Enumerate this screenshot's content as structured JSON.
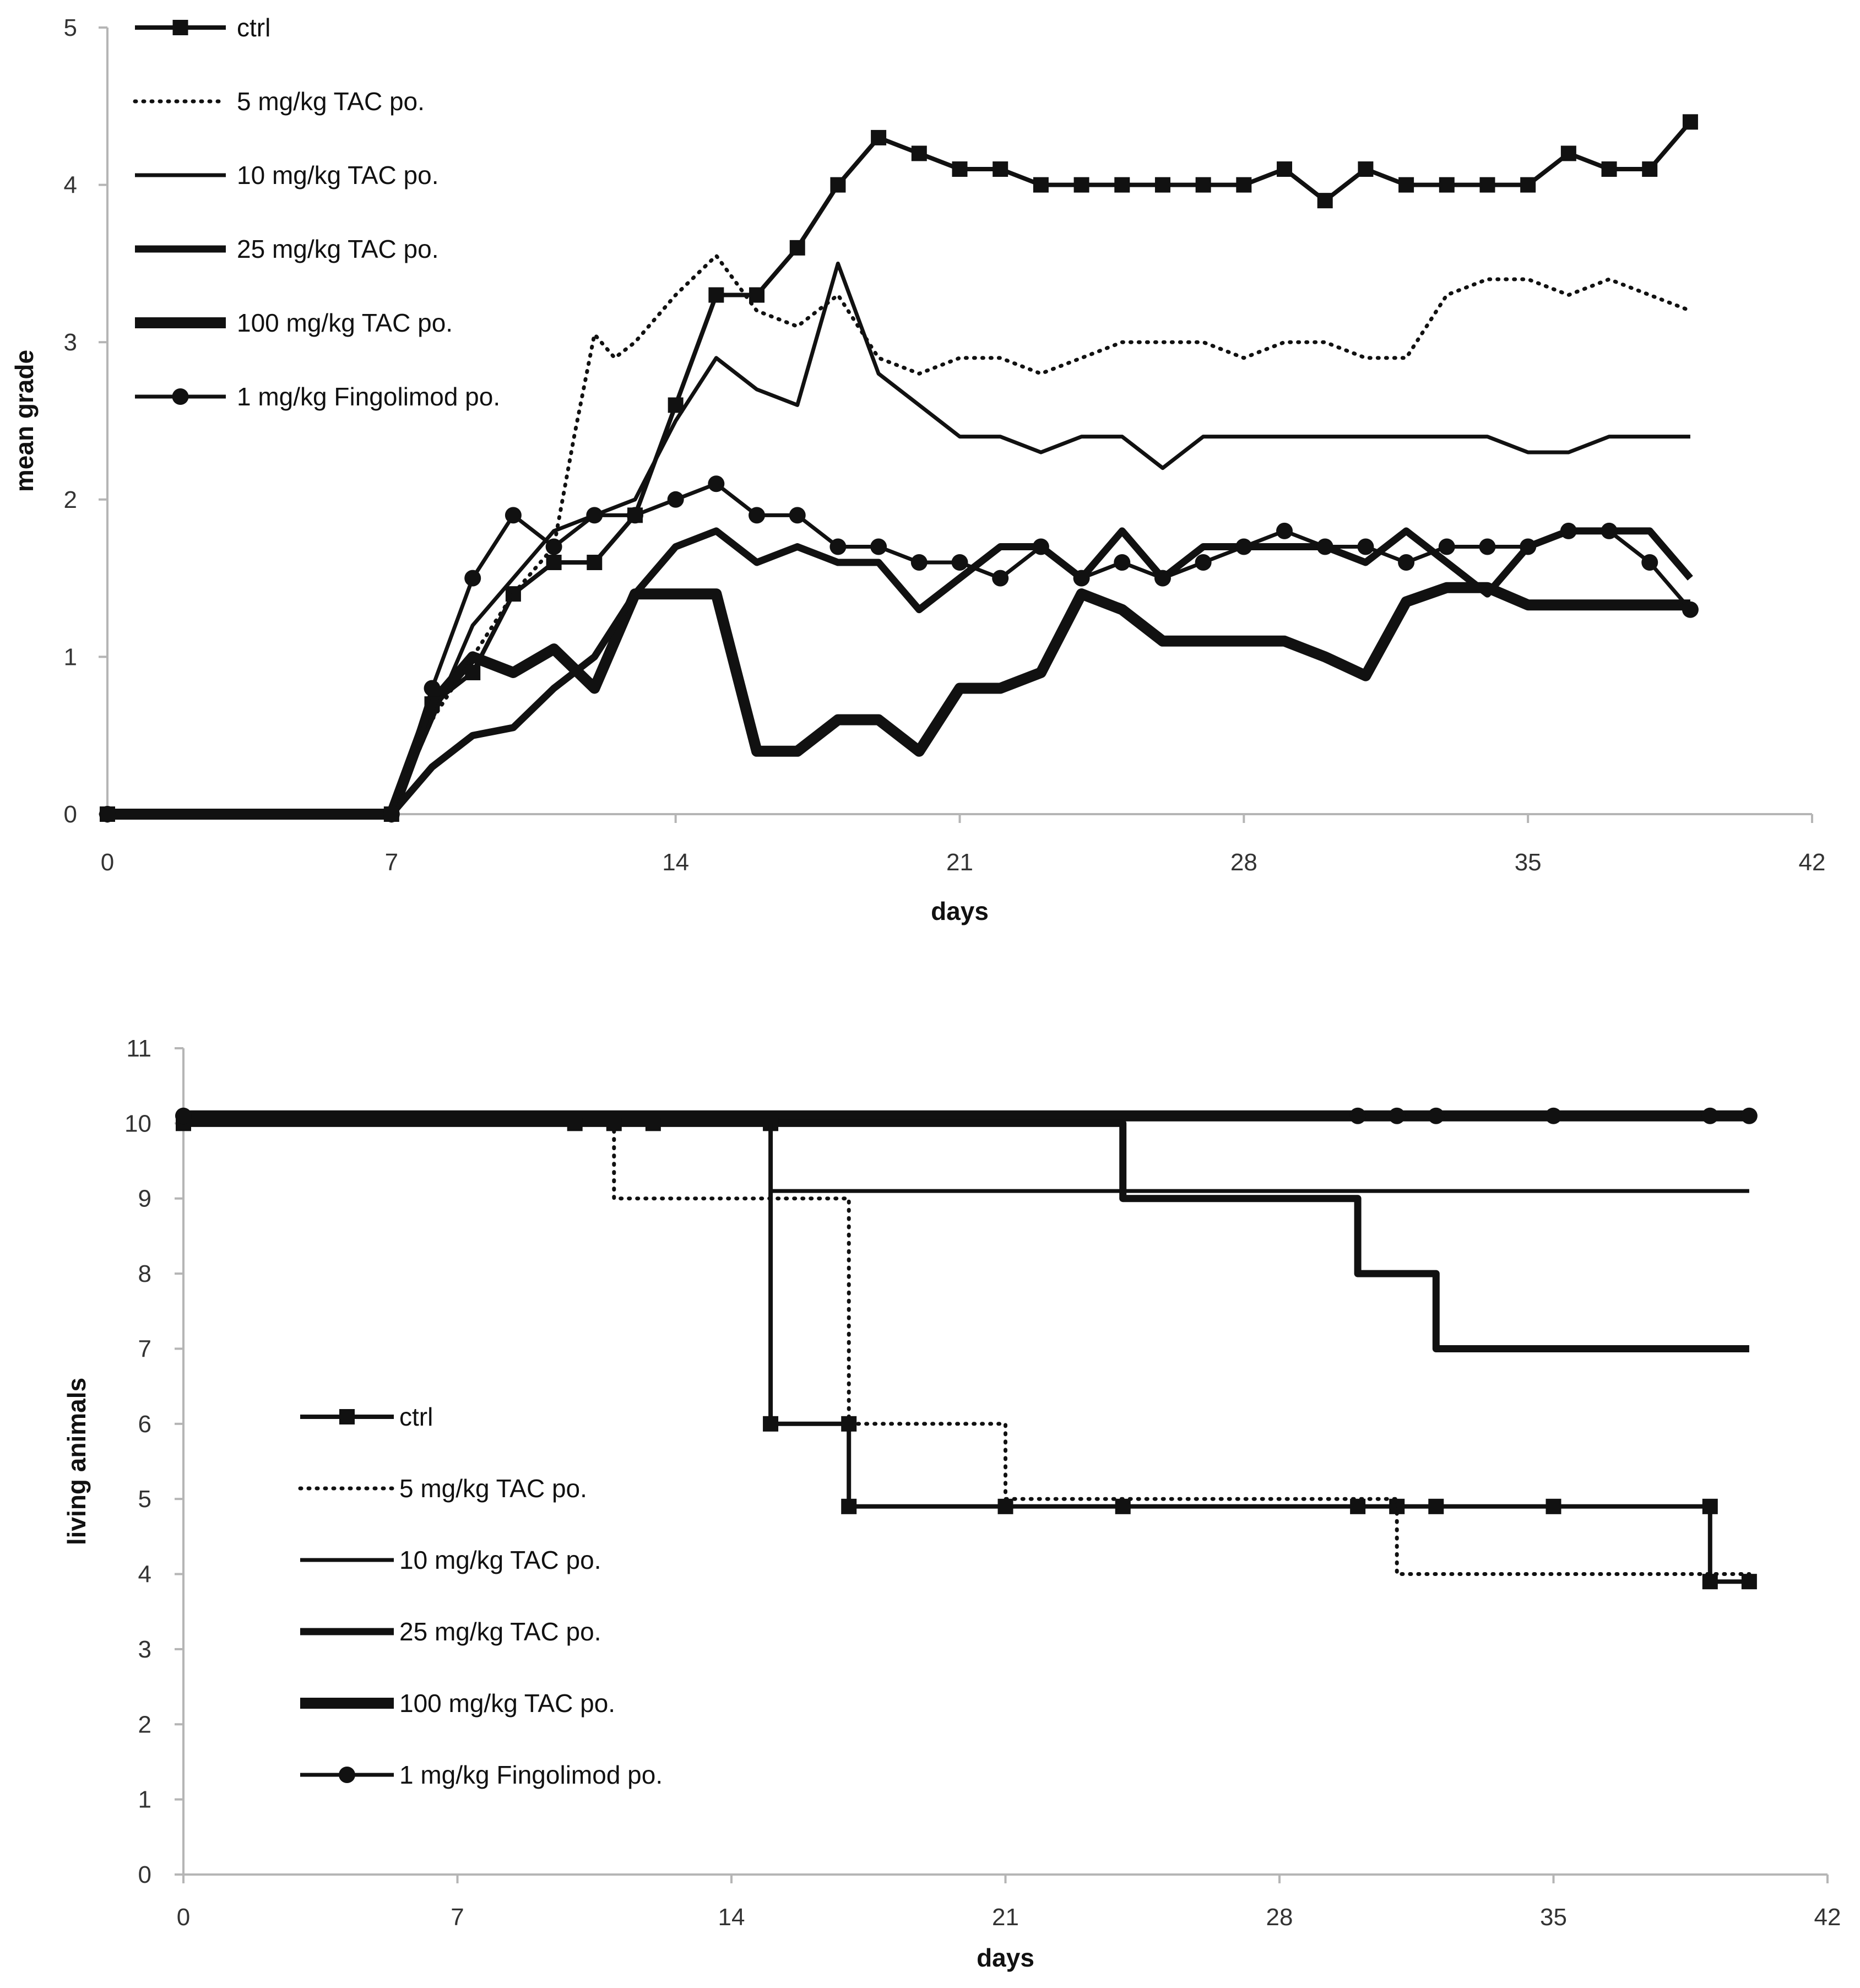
{
  "chart_data": [
    {
      "type": "line",
      "title": "",
      "xlabel": "days",
      "ylabel": "mean grade",
      "xlim": [
        0,
        42
      ],
      "ylim": [
        0,
        5
      ],
      "x_ticks": [
        0,
        7,
        14,
        21,
        28,
        35,
        42
      ],
      "y_ticks": [
        0,
        1,
        2,
        3,
        4,
        5
      ],
      "legend_position": "top-left",
      "series": [
        {
          "name": "ctrl",
          "style": "thin-square",
          "points": [
            [
              0,
              0
            ],
            [
              7,
              0
            ],
            [
              8,
              0.7
            ],
            [
              9,
              0.9
            ],
            [
              10,
              1.4
            ],
            [
              11,
              1.6
            ],
            [
              12,
              1.6
            ],
            [
              13,
              1.9
            ],
            [
              14,
              2.6
            ],
            [
              15,
              3.3
            ],
            [
              16,
              3.3
            ],
            [
              17,
              3.6
            ],
            [
              18,
              4.0
            ],
            [
              19,
              4.3
            ],
            [
              20,
              4.2
            ],
            [
              21,
              4.1
            ],
            [
              22,
              4.1
            ],
            [
              23,
              4.0
            ],
            [
              24,
              4.0
            ],
            [
              25,
              4.0
            ],
            [
              26,
              4.0
            ],
            [
              27,
              4.0
            ],
            [
              28,
              4.0
            ],
            [
              29,
              4.1
            ],
            [
              30,
              3.9
            ],
            [
              31,
              4.1
            ],
            [
              32,
              4.0
            ],
            [
              33,
              4.0
            ],
            [
              34,
              4.0
            ],
            [
              35,
              4.0
            ],
            [
              36,
              4.2
            ],
            [
              37,
              4.1
            ],
            [
              38,
              4.1
            ],
            [
              39,
              4.4
            ]
          ]
        },
        {
          "name": "5 mg/kg TAC po.",
          "style": "dotted",
          "points": [
            [
              0,
              0
            ],
            [
              7,
              0
            ],
            [
              8,
              0.6
            ],
            [
              9,
              1.0
            ],
            [
              10,
              1.4
            ],
            [
              11,
              1.7
            ],
            [
              11.5,
              2.4
            ],
            [
              12,
              3.05
            ],
            [
              12.5,
              2.9
            ],
            [
              13,
              3.0
            ],
            [
              14,
              3.3
            ],
            [
              15,
              3.55
            ],
            [
              16,
              3.2
            ],
            [
              17,
              3.1
            ],
            [
              18,
              3.3
            ],
            [
              19,
              2.9
            ],
            [
              20,
              2.8
            ],
            [
              21,
              2.9
            ],
            [
              22,
              2.9
            ],
            [
              23,
              2.8
            ],
            [
              24,
              2.9
            ],
            [
              25,
              3.0
            ],
            [
              26,
              3.0
            ],
            [
              27,
              3.0
            ],
            [
              28,
              2.9
            ],
            [
              29,
              3.0
            ],
            [
              30,
              3.0
            ],
            [
              31,
              2.9
            ],
            [
              32,
              2.9
            ],
            [
              33,
              3.3
            ],
            [
              34,
              3.4
            ],
            [
              35,
              3.4
            ],
            [
              36,
              3.3
            ],
            [
              37,
              3.4
            ],
            [
              38,
              3.3
            ],
            [
              39,
              3.2
            ]
          ]
        },
        {
          "name": "10 mg/kg TAC po.",
          "style": "thin",
          "points": [
            [
              0,
              0
            ],
            [
              7,
              0
            ],
            [
              8,
              0.6
            ],
            [
              9,
              1.2
            ],
            [
              10,
              1.5
            ],
            [
              11,
              1.8
            ],
            [
              12,
              1.9
            ],
            [
              13,
              2.0
            ],
            [
              14,
              2.5
            ],
            [
              15,
              2.9
            ],
            [
              16,
              2.7
            ],
            [
              17,
              2.6
            ],
            [
              18,
              3.5
            ],
            [
              19,
              2.8
            ],
            [
              20,
              2.6
            ],
            [
              21,
              2.4
            ],
            [
              22,
              2.4
            ],
            [
              23,
              2.3
            ],
            [
              24,
              2.4
            ],
            [
              25,
              2.4
            ],
            [
              26,
              2.2
            ],
            [
              27,
              2.4
            ],
            [
              28,
              2.4
            ],
            [
              29,
              2.4
            ],
            [
              30,
              2.4
            ],
            [
              31,
              2.4
            ],
            [
              32,
              2.4
            ],
            [
              33,
              2.4
            ],
            [
              34,
              2.4
            ],
            [
              35,
              2.3
            ],
            [
              36,
              2.3
            ],
            [
              37,
              2.4
            ],
            [
              38,
              2.4
            ],
            [
              39,
              2.4
            ]
          ]
        },
        {
          "name": "25 mg/kg TAC po.",
          "style": "medium",
          "points": [
            [
              0,
              0
            ],
            [
              7,
              0
            ],
            [
              8,
              0.3
            ],
            [
              9,
              0.5
            ],
            [
              10,
              0.55
            ],
            [
              11,
              0.8
            ],
            [
              12,
              1.0
            ],
            [
              13,
              1.4
            ],
            [
              14,
              1.7
            ],
            [
              15,
              1.8
            ],
            [
              16,
              1.6
            ],
            [
              17,
              1.7
            ],
            [
              18,
              1.6
            ],
            [
              19,
              1.6
            ],
            [
              20,
              1.3
            ],
            [
              21,
              1.5
            ],
            [
              22,
              1.7
            ],
            [
              23,
              1.7
            ],
            [
              24,
              1.5
            ],
            [
              25,
              1.8
            ],
            [
              26,
              1.5
            ],
            [
              27,
              1.7
            ],
            [
              28,
              1.7
            ],
            [
              29,
              1.7
            ],
            [
              30,
              1.7
            ],
            [
              31,
              1.6
            ],
            [
              32,
              1.8
            ],
            [
              33,
              1.6
            ],
            [
              34,
              1.4
            ],
            [
              35,
              1.7
            ],
            [
              36,
              1.8
            ],
            [
              37,
              1.8
            ],
            [
              38,
              1.8
            ],
            [
              39,
              1.5
            ]
          ]
        },
        {
          "name": "100 mg/kg TAC po.",
          "style": "thick",
          "points": [
            [
              0,
              0
            ],
            [
              7,
              0
            ],
            [
              8,
              0.7
            ],
            [
              9,
              1.0
            ],
            [
              10,
              0.9
            ],
            [
              11,
              1.05
            ],
            [
              12,
              0.8
            ],
            [
              13,
              1.4
            ],
            [
              14,
              1.4
            ],
            [
              15,
              1.4
            ],
            [
              16,
              0.4
            ],
            [
              17,
              0.4
            ],
            [
              18,
              0.6
            ],
            [
              19,
              0.6
            ],
            [
              20,
              0.4
            ],
            [
              21,
              0.8
            ],
            [
              22,
              0.8
            ],
            [
              23,
              0.9
            ],
            [
              24,
              1.4
            ],
            [
              25,
              1.3
            ],
            [
              26,
              1.1
            ],
            [
              27,
              1.1
            ],
            [
              28,
              1.1
            ],
            [
              29,
              1.1
            ],
            [
              30,
              1.0
            ],
            [
              31,
              0.88
            ],
            [
              32,
              1.35
            ],
            [
              33,
              1.44
            ],
            [
              34,
              1.44
            ],
            [
              35,
              1.33
            ],
            [
              36,
              1.33
            ],
            [
              37,
              1.33
            ],
            [
              38,
              1.33
            ],
            [
              39,
              1.33
            ]
          ]
        },
        {
          "name": "1 mg/kg Fingolimod po.",
          "style": "thin-circle",
          "points": [
            [
              0,
              0
            ],
            [
              7,
              0
            ],
            [
              8,
              0.8
            ],
            [
              9,
              1.5
            ],
            [
              10,
              1.9
            ],
            [
              11,
              1.7
            ],
            [
              12,
              1.9
            ],
            [
              13,
              1.9
            ],
            [
              14,
              2.0
            ],
            [
              15,
              2.1
            ],
            [
              16,
              1.9
            ],
            [
              17,
              1.9
            ],
            [
              18,
              1.7
            ],
            [
              19,
              1.7
            ],
            [
              20,
              1.6
            ],
            [
              21,
              1.6
            ],
            [
              22,
              1.5
            ],
            [
              23,
              1.7
            ],
            [
              24,
              1.5
            ],
            [
              25,
              1.6
            ],
            [
              26,
              1.5
            ],
            [
              27,
              1.6
            ],
            [
              28,
              1.7
            ],
            [
              29,
              1.8
            ],
            [
              30,
              1.7
            ],
            [
              31,
              1.7
            ],
            [
              32,
              1.6
            ],
            [
              33,
              1.7
            ],
            [
              34,
              1.7
            ],
            [
              35,
              1.7
            ],
            [
              36,
              1.8
            ],
            [
              37,
              1.8
            ],
            [
              38,
              1.6
            ],
            [
              39,
              1.3
            ]
          ]
        }
      ]
    },
    {
      "type": "line",
      "title": "",
      "xlabel": "days",
      "ylabel": "living animals",
      "xlim": [
        0,
        42
      ],
      "ylim": [
        0,
        11
      ],
      "x_ticks": [
        0,
        7,
        14,
        21,
        28,
        35,
        42
      ],
      "y_ticks": [
        0,
        1,
        2,
        3,
        4,
        5,
        6,
        7,
        8,
        9,
        10,
        11
      ],
      "legend_position": "lower-left",
      "series": [
        {
          "name": "ctrl",
          "style": "thin-square",
          "points": [
            [
              0,
              10
            ],
            [
              15,
              10
            ],
            [
              15,
              6
            ],
            [
              17,
              6
            ],
            [
              17,
              4.9
            ],
            [
              39,
              4.9
            ],
            [
              39,
              3.9
            ],
            [
              40,
              3.9
            ]
          ],
          "markers": [
            [
              0,
              10
            ],
            [
              10,
              10
            ],
            [
              11,
              10
            ],
            [
              12,
              10
            ],
            [
              15,
              10
            ],
            [
              15,
              6
            ],
            [
              17,
              6
            ],
            [
              17,
              4.9
            ],
            [
              21,
              4.9
            ],
            [
              24,
              4.9
            ],
            [
              30,
              4.9
            ],
            [
              31,
              4.9
            ],
            [
              32,
              4.9
            ],
            [
              35,
              4.9
            ],
            [
              39,
              4.9
            ],
            [
              39,
              3.9
            ],
            [
              40,
              3.9
            ]
          ]
        },
        {
          "name": "5 mg/kg TAC po.",
          "style": "dotted",
          "points": [
            [
              0,
              10
            ],
            [
              11,
              10
            ],
            [
              11,
              9
            ],
            [
              17,
              9
            ],
            [
              17,
              6
            ],
            [
              21,
              6
            ],
            [
              21,
              5
            ],
            [
              31,
              5
            ],
            [
              31,
              4
            ],
            [
              40,
              4
            ]
          ]
        },
        {
          "name": "10 mg/kg TAC po.",
          "style": "thin",
          "points": [
            [
              0,
              10
            ],
            [
              15,
              10
            ],
            [
              15,
              9.1
            ],
            [
              40,
              9.1
            ]
          ]
        },
        {
          "name": "25 mg/kg TAC po.",
          "style": "medium",
          "points": [
            [
              0,
              10
            ],
            [
              24,
              10
            ],
            [
              24,
              9
            ],
            [
              30,
              9
            ],
            [
              30,
              8
            ],
            [
              32,
              8
            ],
            [
              32,
              7
            ],
            [
              40,
              7
            ]
          ]
        },
        {
          "name": "100 mg/kg TAC po.",
          "style": "thick",
          "points": [
            [
              0,
              10.1
            ],
            [
              40,
              10.1
            ]
          ]
        },
        {
          "name": "1 mg/kg Fingolimod po.",
          "style": "thin-circle",
          "points": [
            [
              0,
              10.1
            ],
            [
              40,
              10.1
            ]
          ],
          "markers": [
            [
              0,
              10.1
            ],
            [
              30,
              10.1
            ],
            [
              31,
              10.1
            ],
            [
              32,
              10.1
            ],
            [
              35,
              10.1
            ],
            [
              39,
              10.1
            ],
            [
              40,
              10.1
            ]
          ]
        }
      ]
    }
  ]
}
